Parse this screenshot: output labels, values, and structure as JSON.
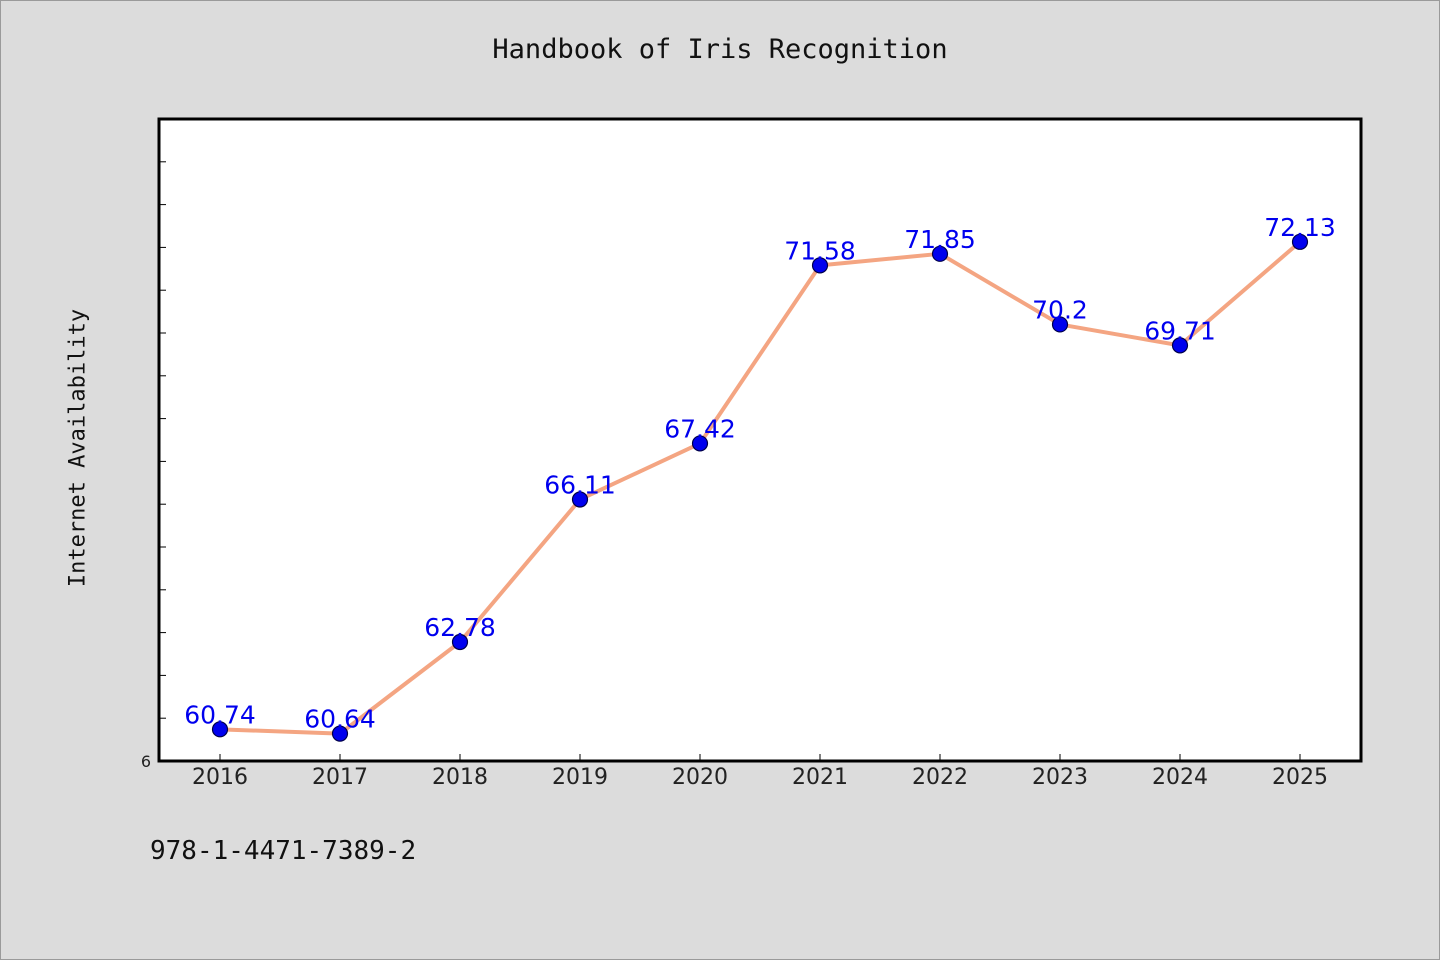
{
  "page": {
    "title": "Handbook of Iris Recognition",
    "footer_id": "978-1-4471-7389-2"
  },
  "chart_data": {
    "type": "line",
    "title": "Handbook of Iris Recognition",
    "xlabel": "",
    "ylabel": "Internet Availability",
    "categories": [
      "2016",
      "2017",
      "2018",
      "2019",
      "2020",
      "2021",
      "2022",
      "2023",
      "2024",
      "2025"
    ],
    "series": [
      {
        "values": [
          60.74,
          60.64,
          62.78,
          66.11,
          67.42,
          71.58,
          71.85,
          70.2,
          69.71,
          72.13
        ],
        "labels": [
          "60.74",
          "60.64",
          "62.78",
          "66.11",
          "67.42",
          "71.58",
          "71.85",
          "70.2",
          "69.71",
          "72.13"
        ]
      }
    ],
    "ylim": [
      60,
      75
    ],
    "y_min_label": "6",
    "y_minor_tick_step": 1,
    "grid": false,
    "legend": "none",
    "colors": {
      "line": "#f4a582",
      "marker": "#0000ee",
      "marker_edge": "#00004a",
      "data_label": "#0000ee",
      "plot_bg": "#ffffff",
      "page_bg": "#dcdcdc"
    }
  }
}
